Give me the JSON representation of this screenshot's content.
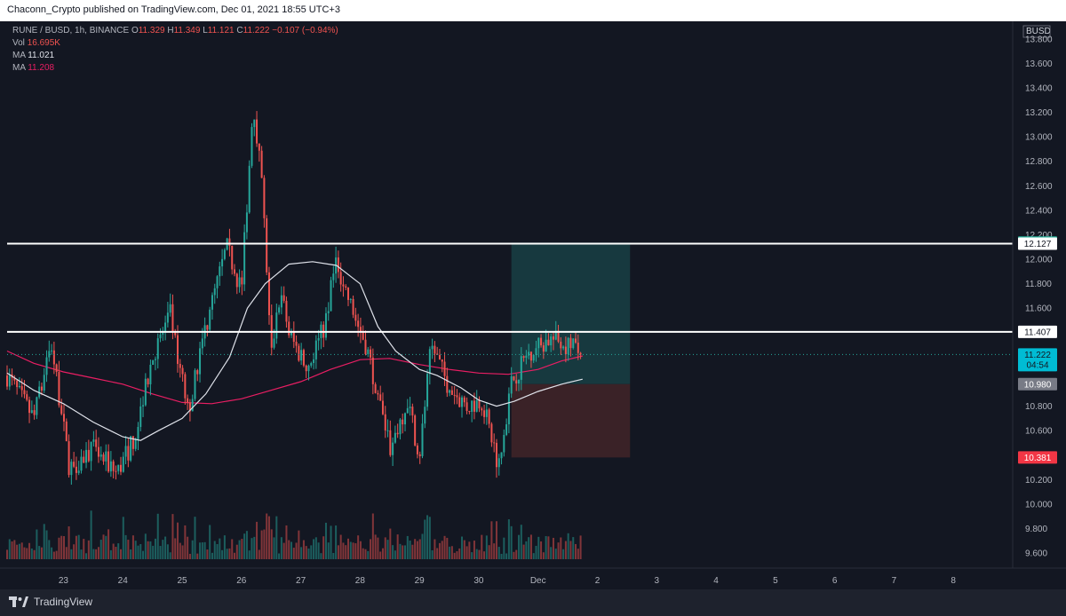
{
  "header": {
    "published": "Chaconn_Crypto published on TradingView.com, Dec 01, 2021 18:55 UTC+3"
  },
  "legend": {
    "symbol": "RUNE / BUSD, 1h, BINANCE",
    "o_label": "O",
    "o": "11.329",
    "h_label": "H",
    "h": "11.349",
    "l_label": "L",
    "l": "11.121",
    "c_label": "C",
    "c": "11.222",
    "change": "−0.107 (−0.94%)",
    "vol_label": "Vol",
    "vol": "16.695K",
    "ma1_label": "MA",
    "ma1": "11.021",
    "ma2_label": "MA",
    "ma2": "11.208"
  },
  "footer": {
    "brand": "TradingView"
  },
  "colors": {
    "background": "#131722",
    "up": "#26a69a",
    "down": "#ef5350",
    "ma_fast": "#e0e3eb",
    "ma_slow": "#e91e63",
    "profit_zone": "#17393f",
    "loss_zone": "#3a2227"
  },
  "chart_data": {
    "type": "candlestick",
    "currency": "BUSD",
    "y_ticks": [
      "13.800",
      "13.600",
      "13.400",
      "13.200",
      "13.000",
      "12.800",
      "12.600",
      "12.400",
      "12.200",
      "12.000",
      "11.800",
      "11.600",
      "11.400",
      "11.200",
      "11.000",
      "10.800",
      "10.600",
      "10.400",
      "10.200",
      "10.000",
      "9.800",
      "9.600"
    ],
    "y_range": [
      9.55,
      13.9
    ],
    "x_ticks": [
      "23",
      "24",
      "25",
      "26",
      "27",
      "28",
      "29",
      "30",
      "Dec",
      "2",
      "3",
      "4",
      "5",
      "6",
      "7",
      "8"
    ],
    "x_range_days": [
      22.05,
      39.0
    ],
    "horizontal_lines": [
      12.127,
      11.407
    ],
    "last_price": 11.222,
    "countdown": "04:54",
    "price_labels": [
      {
        "value": 12.136,
        "text": "12.136",
        "style": "profit"
      },
      {
        "value": 12.127,
        "text": "12.127",
        "style": "line"
      },
      {
        "value": 11.407,
        "text": "11.407",
        "style": "line"
      },
      {
        "value": 11.222,
        "text": "11.222",
        "style": "last"
      },
      {
        "value": 10.98,
        "text": "10.980",
        "style": "entry"
      },
      {
        "value": 10.381,
        "text": "10.381",
        "style": "stop"
      }
    ],
    "position": {
      "entry": 10.98,
      "target": 12.136,
      "stop": 10.381,
      "start_day": 30.55,
      "end_day": 32.55
    },
    "anchors": [
      [
        22.05,
        11.05
      ],
      [
        22.5,
        10.7
      ],
      [
        22.8,
        11.3
      ],
      [
        23.1,
        10.3
      ],
      [
        23.5,
        10.45
      ],
      [
        23.9,
        10.25
      ],
      [
        24.2,
        10.55
      ],
      [
        24.5,
        11.2
      ],
      [
        24.8,
        11.55
      ],
      [
        25.1,
        10.75
      ],
      [
        25.4,
        11.45
      ],
      [
        25.75,
        12.1
      ],
      [
        26.0,
        11.75
      ],
      [
        26.2,
        13.3
      ],
      [
        26.35,
        12.6
      ],
      [
        26.5,
        11.2
      ],
      [
        26.65,
        11.75
      ],
      [
        26.8,
        11.4
      ],
      [
        27.1,
        11.1
      ],
      [
        27.4,
        11.45
      ],
      [
        27.6,
        12.0
      ],
      [
        27.85,
        11.6
      ],
      [
        28.1,
        11.3
      ],
      [
        28.3,
        10.9
      ],
      [
        28.5,
        10.45
      ],
      [
        28.8,
        10.85
      ],
      [
        29.0,
        10.4
      ],
      [
        29.2,
        11.3
      ],
      [
        29.5,
        10.95
      ],
      [
        29.8,
        10.8
      ],
      [
        30.05,
        10.85
      ],
      [
        30.35,
        10.3
      ],
      [
        30.55,
        11.0
      ],
      [
        30.85,
        11.25
      ],
      [
        31.2,
        11.35
      ],
      [
        31.5,
        11.3
      ],
      [
        31.75,
        11.22
      ]
    ],
    "ma_fast_anchors": [
      [
        22.05,
        11.07
      ],
      [
        22.5,
        10.93
      ],
      [
        23.0,
        10.82
      ],
      [
        23.5,
        10.67
      ],
      [
        24.0,
        10.55
      ],
      [
        24.3,
        10.52
      ],
      [
        24.6,
        10.6
      ],
      [
        25.0,
        10.7
      ],
      [
        25.4,
        10.9
      ],
      [
        25.8,
        11.2
      ],
      [
        26.1,
        11.6
      ],
      [
        26.4,
        11.8
      ],
      [
        26.8,
        11.96
      ],
      [
        27.2,
        11.98
      ],
      [
        27.6,
        11.95
      ],
      [
        28.0,
        11.8
      ],
      [
        28.3,
        11.45
      ],
      [
        28.6,
        11.25
      ],
      [
        29.0,
        11.1
      ],
      [
        29.3,
        11.05
      ],
      [
        29.7,
        10.95
      ],
      [
        30.0,
        10.85
      ],
      [
        30.3,
        10.8
      ],
      [
        30.6,
        10.84
      ],
      [
        31.0,
        10.92
      ],
      [
        31.4,
        10.98
      ],
      [
        31.75,
        11.02
      ]
    ],
    "ma_slow_anchors": [
      [
        22.05,
        11.25
      ],
      [
        22.5,
        11.15
      ],
      [
        23.0,
        11.08
      ],
      [
        23.5,
        11.03
      ],
      [
        24.0,
        10.98
      ],
      [
        24.5,
        10.9
      ],
      [
        25.0,
        10.83
      ],
      [
        25.5,
        10.82
      ],
      [
        26.0,
        10.86
      ],
      [
        26.5,
        10.93
      ],
      [
        27.0,
        11.0
      ],
      [
        27.5,
        11.1
      ],
      [
        28.0,
        11.18
      ],
      [
        28.5,
        11.19
      ],
      [
        29.0,
        11.14
      ],
      [
        29.5,
        11.1
      ],
      [
        30.0,
        11.07
      ],
      [
        30.5,
        11.06
      ],
      [
        31.0,
        11.1
      ],
      [
        31.4,
        11.17
      ],
      [
        31.75,
        11.21
      ]
    ]
  }
}
